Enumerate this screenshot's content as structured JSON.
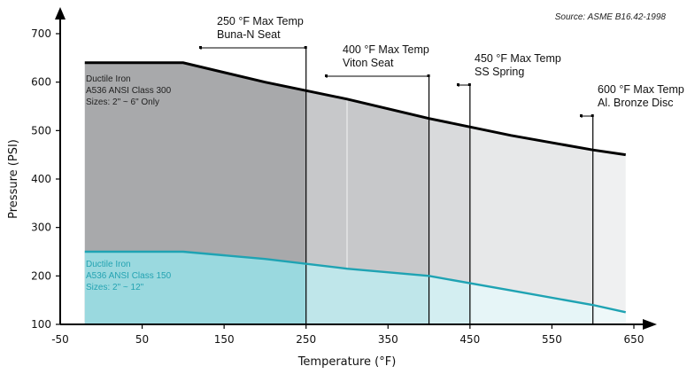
{
  "chart_data": {
    "type": "area",
    "source": "Source: ASME B16.42-1998",
    "xlabel": "Temperature (°F)",
    "ylabel": "Pressure (PSI)",
    "xlim": [
      -50,
      650
    ],
    "ylim": [
      100,
      700
    ],
    "x_ticks": [
      "-50",
      "50",
      "150",
      "250",
      "350",
      "450",
      "550",
      "650"
    ],
    "y_ticks": [
      "100",
      "200",
      "300",
      "400",
      "500",
      "600",
      "700"
    ],
    "series": [
      {
        "name_lines": [
          "Ductile Iron",
          "A536 ANSI Class 300",
          "Sizes: 2\" ~ 6\" Only"
        ],
        "color": "#000000",
        "points": [
          [
            -20,
            640
          ],
          [
            100,
            640
          ],
          [
            200,
            600
          ],
          [
            300,
            565
          ],
          [
            400,
            525
          ],
          [
            500,
            490
          ],
          [
            600,
            460
          ],
          [
            640,
            450
          ]
        ]
      },
      {
        "name_lines": [
          "Ductile Iron",
          "A536 ANSI Class 150",
          "Sizes: 2\" ~ 12\""
        ],
        "color": "#1fa3b3",
        "points": [
          [
            -20,
            250
          ],
          [
            100,
            250
          ],
          [
            200,
            235
          ],
          [
            300,
            215
          ],
          [
            400,
            200
          ],
          [
            500,
            170
          ],
          [
            600,
            140
          ],
          [
            640,
            125
          ]
        ]
      }
    ],
    "annotations": [
      {
        "lines": [
          "250 °F Max Temp",
          "Buna-N Seat"
        ],
        "x": 250
      },
      {
        "lines": [
          "400 °F Max Temp",
          "Viton Seat"
        ],
        "x": 400
      },
      {
        "lines": [
          "450 °F Max Temp",
          "SS Spring"
        ],
        "x": 450
      },
      {
        "lines": [
          "600 °F Max Temp",
          "Al. Bronze Disc"
        ],
        "x": 600
      }
    ]
  }
}
